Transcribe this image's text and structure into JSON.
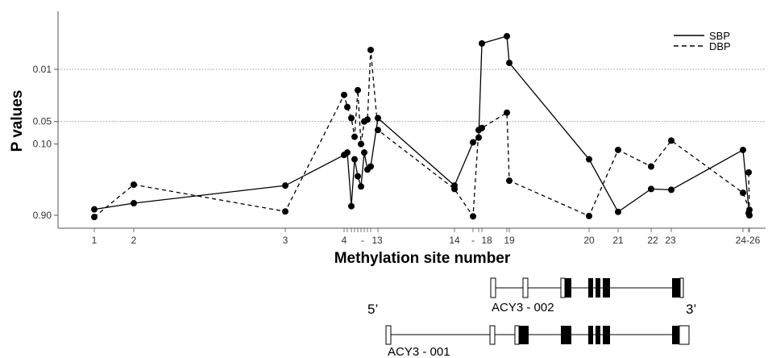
{
  "chart_data": {
    "type": "line",
    "xlabel": "Methylation site number",
    "ylabel": "P values",
    "y_scale": "log",
    "y_axis_inverted": true,
    "ylim": [
      1.1,
      0.0032
    ],
    "y_gridlines": [
      0.01,
      0.05
    ],
    "y_ticks": [
      {
        "value": 0.01,
        "label": "0.01"
      },
      {
        "value": 0.05,
        "label": "0.05"
      },
      {
        "value": 0.1,
        "label": "0.10"
      },
      {
        "value": 0.9,
        "label": "0.90"
      }
    ],
    "x_tick_labels": [
      {
        "site": 1,
        "label": "1"
      },
      {
        "site": 2,
        "label": "2"
      },
      {
        "site": 3,
        "label": "3"
      },
      {
        "site": 4,
        "label": "4"
      },
      {
        "site": 8.5,
        "label": "-"
      },
      {
        "site": 13,
        "label": "13"
      },
      {
        "site": 14,
        "label": "14"
      },
      {
        "site": 15,
        "label": "-"
      },
      {
        "site": 18,
        "label": "18"
      },
      {
        "site": 19,
        "label": "19"
      },
      {
        "site": 20,
        "label": "20"
      },
      {
        "site": 21,
        "label": "21"
      },
      {
        "site": 22,
        "label": "22"
      },
      {
        "site": 23,
        "label": "23"
      },
      {
        "site": 24,
        "label": "24-26"
      }
    ],
    "x": [
      1,
      2,
      3,
      4,
      5,
      6,
      7,
      8,
      9,
      10,
      11,
      12,
      13,
      14,
      15,
      16,
      17,
      18,
      19,
      20,
      21,
      22,
      23,
      24,
      25,
      26
    ],
    "series": [
      {
        "name": "SBP",
        "style": "solid",
        "values": [
          0.75,
          0.62,
          0.36,
          0.14,
          0.13,
          0.68,
          0.16,
          0.27,
          0.37,
          0.13,
          0.22,
          0.2,
          0.045,
          0.36,
          0.095,
          0.082,
          0.0045,
          0.0036,
          0.0082,
          0.16,
          0.81,
          0.4,
          0.41,
          0.12,
          0.9,
          0.84
        ]
      },
      {
        "name": "DBP",
        "style": "dashed",
        "values": [
          0.95,
          0.35,
          0.8,
          0.022,
          0.032,
          0.045,
          0.08,
          0.019,
          0.1,
          0.05,
          0.047,
          0.0055,
          0.065,
          0.4,
          0.93,
          0.065,
          0.061,
          0.038,
          0.31,
          0.92,
          0.12,
          0.2,
          0.09,
          0.45,
          0.76,
          0.24
        ]
      }
    ],
    "legend": {
      "position": "top-right",
      "entries": [
        "SBP",
        "DBP"
      ]
    },
    "gene_diagram": {
      "five_prime": "5’",
      "three_prime": "3’",
      "transcripts": [
        "ACY3 - 002",
        "ACY3 - 001"
      ]
    }
  }
}
